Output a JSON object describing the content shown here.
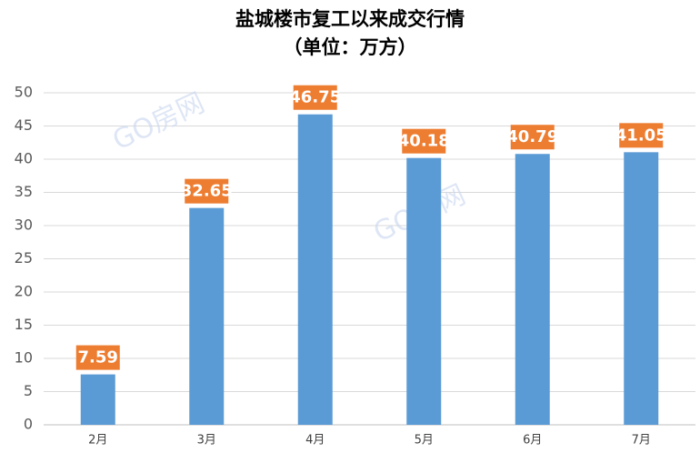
{
  "chart_data": {
    "type": "bar",
    "title": "盐城楼市复工以来成交行情",
    "subtitle": "（单位：万方）",
    "categories": [
      "2月",
      "3月",
      "4月",
      "5月",
      "6月",
      "7月"
    ],
    "values": [
      7.59,
      32.65,
      46.75,
      40.18,
      40.79,
      41.05
    ],
    "color": "#5b9bd5",
    "label_color": "#ed7d31",
    "ylim": [
      0,
      50
    ],
    "yticks": [
      0,
      5,
      10,
      15,
      20,
      25,
      30,
      35,
      40,
      45,
      50
    ],
    "grid": true,
    "watermark": "GO房网"
  }
}
